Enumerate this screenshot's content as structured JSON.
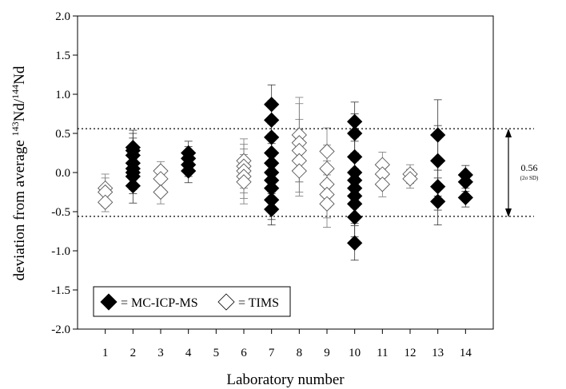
{
  "chart_data": {
    "type": "scatter",
    "xlabel": "Laboratory number",
    "ylabel_parts": [
      "deviation from average ",
      "143",
      "Nd/",
      "144",
      "Nd"
    ],
    "x_ticks": [
      "1",
      "2",
      "3",
      "4",
      "5",
      "6",
      "7",
      "8",
      "9",
      "10",
      "11",
      "12",
      "13",
      "14"
    ],
    "y_ticks": [
      "2.0",
      "1.5",
      "1.0",
      "0.5",
      "0.0",
      "-0.5",
      "-1.0",
      "-1.5",
      "-2.0"
    ],
    "xlim": [
      0,
      15
    ],
    "ylim": [
      -2.0,
      2.0
    ],
    "grid": false,
    "reference_lines": [
      0.56,
      -0.56
    ],
    "annotation": {
      "value": "0.56",
      "sub": "(2σ SD)"
    },
    "legend": {
      "position": "bottom-left",
      "entries": [
        {
          "symbol": "filled-diamond",
          "label": "= MC-ICP-MS"
        },
        {
          "symbol": "open-diamond",
          "label": "= TIMS"
        }
      ]
    },
    "series": [
      {
        "method": "MC-ICP-MS",
        "filled": true,
        "points": [
          {
            "x": 2,
            "y": 0.32,
            "err": 0.22
          },
          {
            "x": 2,
            "y": 0.28,
            "err": 0.22
          },
          {
            "x": 2,
            "y": 0.22,
            "err": 0.22
          },
          {
            "x": 2,
            "y": 0.12,
            "err": 0.22
          },
          {
            "x": 2,
            "y": 0.05,
            "err": 0.22
          },
          {
            "x": 2,
            "y": 0.0,
            "err": 0.22
          },
          {
            "x": 2,
            "y": -0.05,
            "err": 0.22
          },
          {
            "x": 2,
            "y": -0.17,
            "err": 0.22
          },
          {
            "x": 4,
            "y": 0.25,
            "err": 0.15
          },
          {
            "x": 4,
            "y": 0.18,
            "err": 0.15
          },
          {
            "x": 4,
            "y": 0.1,
            "err": 0.15
          },
          {
            "x": 4,
            "y": 0.02,
            "err": 0.15
          },
          {
            "x": 7,
            "y": 0.87,
            "err": 0.25
          },
          {
            "x": 7,
            "y": 0.67,
            "err": 0.25
          },
          {
            "x": 7,
            "y": 0.45,
            "err": 0.25
          },
          {
            "x": 7,
            "y": 0.25,
            "err": 0.25
          },
          {
            "x": 7,
            "y": 0.12,
            "err": 0.25
          },
          {
            "x": 7,
            "y": 0.0,
            "err": 0.25
          },
          {
            "x": 7,
            "y": -0.1,
            "err": 0.25
          },
          {
            "x": 7,
            "y": -0.2,
            "err": 0.25
          },
          {
            "x": 7,
            "y": -0.35,
            "err": 0.25
          },
          {
            "x": 7,
            "y": -0.47,
            "err": 0.2
          },
          {
            "x": 10,
            "y": 0.65,
            "err": 0.25
          },
          {
            "x": 10,
            "y": 0.5,
            "err": 0.25
          },
          {
            "x": 10,
            "y": 0.2,
            "err": 0.25
          },
          {
            "x": 10,
            "y": 0.0,
            "err": 0.25
          },
          {
            "x": 10,
            "y": -0.1,
            "err": 0.25
          },
          {
            "x": 10,
            "y": -0.2,
            "err": 0.25
          },
          {
            "x": 10,
            "y": -0.3,
            "err": 0.25
          },
          {
            "x": 10,
            "y": -0.4,
            "err": 0.25
          },
          {
            "x": 10,
            "y": -0.57,
            "err": 0.25
          },
          {
            "x": 10,
            "y": -0.9,
            "err": 0.22
          },
          {
            "x": 13,
            "y": 0.48,
            "err": 0.45
          },
          {
            "x": 13,
            "y": 0.15,
            "err": 0.45
          },
          {
            "x": 13,
            "y": -0.18,
            "err": 0.3
          },
          {
            "x": 13,
            "y": -0.37,
            "err": 0.3
          },
          {
            "x": 14,
            "y": -0.03,
            "err": 0.12
          },
          {
            "x": 14,
            "y": -0.12,
            "err": 0.12
          },
          {
            "x": 14,
            "y": -0.32,
            "err": 0.12
          }
        ]
      },
      {
        "method": "TIMS",
        "filled": false,
        "points": [
          {
            "x": 1,
            "y": -0.2,
            "err": 0.18
          },
          {
            "x": 1,
            "y": -0.25,
            "err": 0.18
          },
          {
            "x": 1,
            "y": -0.38,
            "err": 0.12
          },
          {
            "x": 3,
            "y": 0.02,
            "err": 0.12
          },
          {
            "x": 3,
            "y": -0.08,
            "err": 0.15
          },
          {
            "x": 3,
            "y": -0.25,
            "err": 0.15
          },
          {
            "x": 6,
            "y": 0.15,
            "err": 0.28
          },
          {
            "x": 6,
            "y": 0.08,
            "err": 0.28
          },
          {
            "x": 6,
            "y": 0.02,
            "err": 0.28
          },
          {
            "x": 6,
            "y": -0.05,
            "err": 0.28
          },
          {
            "x": 6,
            "y": -0.12,
            "err": 0.28
          },
          {
            "x": 8,
            "y": 0.48,
            "err": 0.48
          },
          {
            "x": 8,
            "y": 0.38,
            "err": 0.5
          },
          {
            "x": 8,
            "y": 0.28,
            "err": 0.4
          },
          {
            "x": 8,
            "y": 0.15,
            "err": 0.4
          },
          {
            "x": 8,
            "y": 0.02,
            "err": 0.32
          },
          {
            "x": 9,
            "y": 0.27,
            "err": 0.3
          },
          {
            "x": 9,
            "y": 0.05,
            "err": 0.3
          },
          {
            "x": 9,
            "y": -0.15,
            "err": 0.3
          },
          {
            "x": 9,
            "y": -0.28,
            "err": 0.3
          },
          {
            "x": 9,
            "y": -0.4,
            "err": 0.3
          },
          {
            "x": 11,
            "y": 0.1,
            "err": 0.16
          },
          {
            "x": 11,
            "y": -0.02,
            "err": 0.16
          },
          {
            "x": 11,
            "y": -0.15,
            "err": 0.16
          },
          {
            "x": 12,
            "y": -0.02,
            "err": 0.12
          },
          {
            "x": 12,
            "y": -0.08,
            "err": 0.12
          }
        ]
      }
    ]
  }
}
